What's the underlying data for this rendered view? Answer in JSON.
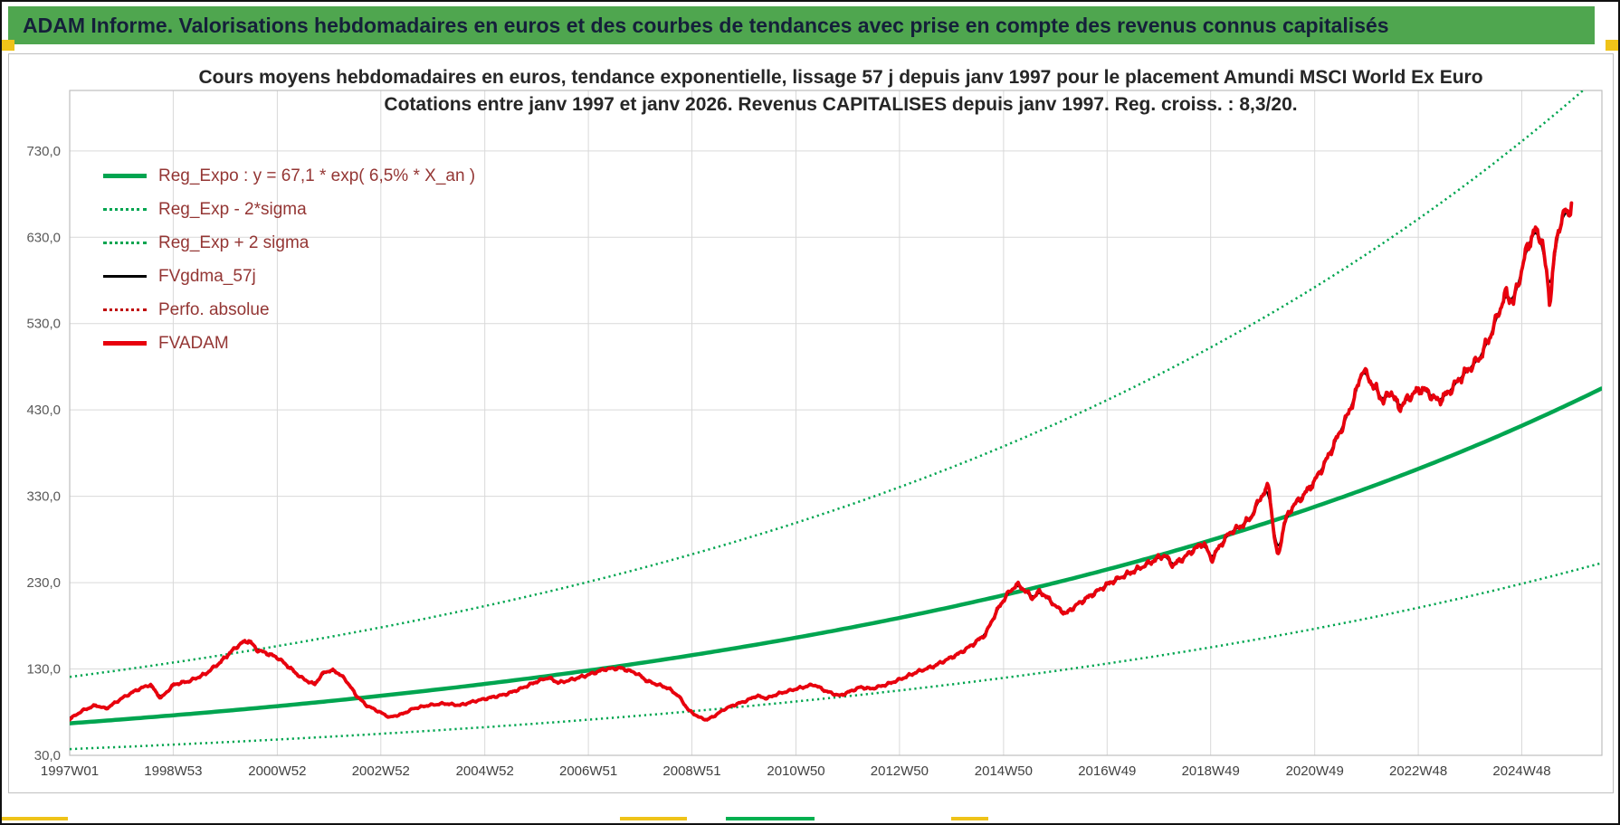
{
  "header": {
    "title": "ADAM Informe. Valorisations hebdomadaires en euros et des courbes de tendances avec prise en compte des revenus connus capitalisés"
  },
  "chart_data": {
    "type": "line",
    "title": "Cours moyens hebdomadaires en euros, tendance exponentielle, lissage 57 j depuis janv 1997  pour le placement Amundi MSCI World Ex Euro",
    "subtitle": "Cotations entre janv 1997 et janv 2026. Revenus CAPITALISES depuis janv 1997. Reg. croiss. : 8,3/20.",
    "xlabel": "",
    "ylabel": "",
    "xlim": [
      1997,
      2026.45
    ],
    "ylim": [
      30,
      800
    ],
    "grid": true,
    "legend_position": "top-left",
    "y_ticks": [
      {
        "value": 730,
        "label": "730,0"
      },
      {
        "value": 630,
        "label": "630,0"
      },
      {
        "value": 530,
        "label": "530,0"
      },
      {
        "value": 430,
        "label": "430,0"
      },
      {
        "value": 330,
        "label": "330,0"
      },
      {
        "value": 230,
        "label": "230,0"
      },
      {
        "value": 130,
        "label": "130,0"
      },
      {
        "value": 30,
        "label": "30,0"
      }
    ],
    "x_ticks": [
      {
        "year": 1997.0,
        "label": "1997W01"
      },
      {
        "year": 1998.99,
        "label": "1998W53"
      },
      {
        "year": 2000.99,
        "label": "2000W52"
      },
      {
        "year": 2002.98,
        "label": "2002W52"
      },
      {
        "year": 2004.98,
        "label": "2004W52"
      },
      {
        "year": 2006.97,
        "label": "2006W51"
      },
      {
        "year": 2008.96,
        "label": "2008W51"
      },
      {
        "year": 2010.96,
        "label": "2010W50"
      },
      {
        "year": 2012.95,
        "label": "2012W50"
      },
      {
        "year": 2014.95,
        "label": "2014W50"
      },
      {
        "year": 2016.94,
        "label": "2016W49"
      },
      {
        "year": 2018.93,
        "label": "2018W49"
      },
      {
        "year": 2020.93,
        "label": "2020W49"
      },
      {
        "year": 2022.92,
        "label": "2022W48"
      },
      {
        "year": 2024.91,
        "label": "2024W48"
      }
    ],
    "legend": [
      {
        "label": "Reg_Expo : y = 67,1 * exp( 6,5% *  X_an )",
        "style": "solid-green-thick"
      },
      {
        "label": "Reg_Exp - 2*sigma",
        "style": "dotted-green"
      },
      {
        "label": "Reg_Exp + 2 sigma",
        "style": "dotted-green"
      },
      {
        "label": "FVgdma_57j",
        "style": "solid-black"
      },
      {
        "label": "Perfo. absolue",
        "style": "dotted-dark-red"
      },
      {
        "label": "FVADAM",
        "style": "solid-red-thick"
      }
    ],
    "colors": {
      "green": "#00A550",
      "red": "#E8000D",
      "dark_red": "#C00000",
      "black": "#000000",
      "grid": "#D9D9D9",
      "axis": "#BFBFBF",
      "header_green": "#4FA64F",
      "marker_yellow": "#EFC319",
      "marker_green": "#00B050"
    },
    "regression": {
      "base": 67.1,
      "rate": 0.065,
      "sigma_factor": 1.8,
      "start_year": 1997,
      "equation_text": "y = 67,1 * exp( 6,5% *  X_an )"
    },
    "series": [
      {
        "name": "FVADAM",
        "color": "#E8000D",
        "x": [
          1997.0,
          1997.25,
          1997.5,
          1997.7,
          1998.0,
          1998.3,
          1998.55,
          1998.75,
          1999.0,
          1999.3,
          1999.6,
          1999.9,
          2000.1,
          2000.3,
          2000.45,
          2000.6,
          2000.8,
          2001.0,
          2001.2,
          2001.45,
          2001.7,
          2001.9,
          2002.1,
          2002.3,
          2002.5,
          2002.7,
          2002.9,
          2003.15,
          2003.4,
          2003.6,
          2003.9,
          2004.2,
          2004.5,
          2004.8,
          2005.1,
          2005.4,
          2005.7,
          2006.0,
          2006.2,
          2006.4,
          2006.6,
          2006.9,
          2007.1,
          2007.3,
          2007.6,
          2007.9,
          2008.1,
          2008.3,
          2008.5,
          2008.7,
          2008.9,
          2009.1,
          2009.25,
          2009.4,
          2009.6,
          2009.8,
          2010.0,
          2010.2,
          2010.4,
          2010.6,
          2010.9,
          2011.1,
          2011.3,
          2011.55,
          2011.8,
          2012.0,
          2012.2,
          2012.4,
          2012.7,
          2013.0,
          2013.3,
          2013.6,
          2013.9,
          2014.1,
          2014.35,
          2014.6,
          2014.8,
          2015.0,
          2015.2,
          2015.35,
          2015.5,
          2015.65,
          2015.8,
          2016.0,
          2016.15,
          2016.35,
          2016.6,
          2016.8,
          2017.0,
          2017.2,
          2017.4,
          2017.7,
          2017.9,
          2018.05,
          2018.2,
          2018.4,
          2018.6,
          2018.8,
          2018.95,
          2019.1,
          2019.3,
          2019.5,
          2019.7,
          2019.9,
          2020.05,
          2020.15,
          2020.22,
          2020.35,
          2020.5,
          2020.7,
          2020.9,
          2021.1,
          2021.3,
          2021.5,
          2021.7,
          2021.85,
          2021.95,
          2022.1,
          2022.25,
          2022.4,
          2022.55,
          2022.7,
          2022.85,
          2023.0,
          2023.15,
          2023.3,
          2023.5,
          2023.7,
          2023.9,
          2024.1,
          2024.3,
          2024.45,
          2024.6,
          2024.75,
          2024.9,
          2025.0,
          2025.15,
          2025.3,
          2025.45,
          2025.55,
          2025.65,
          2025.75,
          2025.82,
          2025.88
        ],
        "y": [
          72,
          82,
          88,
          84,
          96,
          106,
          112,
          96,
          112,
          116,
          124,
          138,
          150,
          160,
          163,
          152,
          148,
          143,
          133,
          120,
          112,
          127,
          128,
          118,
          100,
          88,
          82,
          74,
          78,
          84,
          88,
          90,
          88,
          93,
          97,
          101,
          108,
          116,
          120,
          114,
          117,
          122,
          126,
          130,
          131,
          125,
          116,
          112,
          108,
          99,
          82,
          74,
          71,
          76,
          84,
          89,
          93,
          99,
          96,
          101,
          106,
          109,
          112,
          104,
          99,
          104,
          109,
          107,
          112,
          119,
          127,
          133,
          142,
          148,
          158,
          170,
          195,
          215,
          228,
          222,
          212,
          220,
          212,
          200,
          194,
          204,
          214,
          222,
          230,
          236,
          242,
          251,
          258,
          262,
          250,
          258,
          268,
          276,
          256,
          272,
          288,
          295,
          305,
          330,
          342,
          285,
          258,
          300,
          318,
          330,
          345,
          365,
          390,
          415,
          445,
          478,
          468,
          455,
          440,
          452,
          432,
          442,
          450,
          455,
          448,
          440,
          450,
          465,
          478,
          490,
          515,
          540,
          565,
          555,
          590,
          615,
          638,
          628,
          555,
          615,
          648,
          660,
          655,
          680
        ]
      },
      {
        "name": "FVgdma_57j",
        "color": "#000000",
        "derived_from": "FVADAM",
        "method": "57-day moving average"
      },
      {
        "name": "Perfo. absolue",
        "color": "#C00000",
        "derived_from": "FVADAM",
        "method": "coincides with FVADAM"
      }
    ]
  }
}
